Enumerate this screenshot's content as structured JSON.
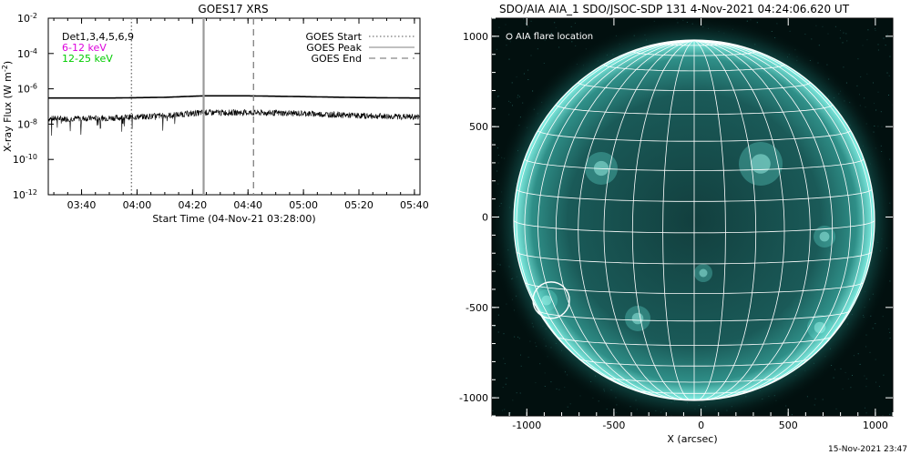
{
  "goes": {
    "title": "GOES17 XRS",
    "ylabel": "X-ray Flux (W m",
    "ylabel_sup": "-2",
    "ylabel_close": ")",
    "xlabel": "Start Time (04-Nov-21 03:28:00)",
    "ytick_labels": [
      {
        "base": "10",
        "exp": "-2"
      },
      {
        "base": "10",
        "exp": "-4"
      },
      {
        "base": "10",
        "exp": "-6"
      },
      {
        "base": "10",
        "exp": "-8"
      },
      {
        "base": "10",
        "exp": "-10"
      },
      {
        "base": "10",
        "exp": "-12"
      }
    ],
    "xtick_labels": [
      "03:40",
      "04:00",
      "04:20",
      "04:40",
      "05:00",
      "05:20",
      "05:40"
    ],
    "channel_labels": [
      {
        "text": "Det1,3,4,5,6,9",
        "color": "#000000"
      },
      {
        "text": "6-12 keV",
        "color": "#dd00dd"
      },
      {
        "text": "12-25 keV",
        "color": "#00cc00"
      }
    ],
    "legend": [
      {
        "label": "GOES Start",
        "style": "dotted"
      },
      {
        "label": "GOES Peak",
        "style": "solid"
      },
      {
        "label": "GOES End",
        "style": "dashed"
      }
    ]
  },
  "aia": {
    "title": "SDO/AIA AIA_1 SDO/JSOC-SDP 131  4-Nov-2021 04:24:06.620 UT",
    "legend_label": "AIA flare location",
    "xlabel": "X (arcsec)",
    "xtick_labels": [
      "-1000",
      "-500",
      "0",
      "500",
      "1000"
    ],
    "ytick_labels": [
      "1000",
      "500",
      "0",
      "-500",
      "-1000"
    ],
    "colors": {
      "disk": "#1f6b6a",
      "limb": "#7ff2e6",
      "background": "#02100f",
      "grid": "#ffffff"
    }
  },
  "footer": {
    "timestamp": "15-Nov-2021 23:47"
  },
  "chart_data": [
    {
      "type": "line",
      "title": "GOES17 XRS",
      "xlabel": "Start Time (04-Nov-21 03:28:00)",
      "ylabel": "X-ray Flux (W m^-2)",
      "yscale": "log",
      "ylim": [
        1e-12,
        0.01
      ],
      "xlim": [
        "03:28",
        "05:42"
      ],
      "series": [
        {
          "name": "6-12 keV",
          "x": [
            "03:28",
            "03:50",
            "04:10",
            "04:24",
            "04:40",
            "05:00",
            "05:20",
            "05:42"
          ],
          "values": [
            3e-07,
            3e-07,
            3.3e-07,
            4e-07,
            4e-07,
            3.6e-07,
            3.2e-07,
            3e-07
          ]
        },
        {
          "name": "12-25 keV",
          "x": [
            "03:28",
            "03:50",
            "04:10",
            "04:24",
            "04:40",
            "05:00",
            "05:20",
            "05:42"
          ],
          "values": [
            2e-08,
            2.2e-08,
            3e-08,
            4.5e-08,
            4.5e-08,
            4e-08,
            3e-08,
            2.5e-08
          ]
        }
      ],
      "vlines": [
        {
          "name": "GOES Start",
          "x": "03:58",
          "style": "dotted"
        },
        {
          "name": "GOES Peak",
          "x": "04:24",
          "style": "solid"
        },
        {
          "name": "GOES End",
          "x": "04:42",
          "style": "dashed"
        }
      ]
    },
    {
      "type": "scatter",
      "title": "SDO/AIA AIA_1 SDO/JSOC-SDP 131  4-Nov-2021 04:24:06.620 UT",
      "xlabel": "X (arcsec)",
      "xlim": [
        -1200,
        1100
      ],
      "ylim": [
        -1100,
        1100
      ],
      "series": [
        {
          "name": "AIA flare location",
          "x": [
            -860
          ],
          "values": [
            -460
          ]
        }
      ]
    }
  ]
}
